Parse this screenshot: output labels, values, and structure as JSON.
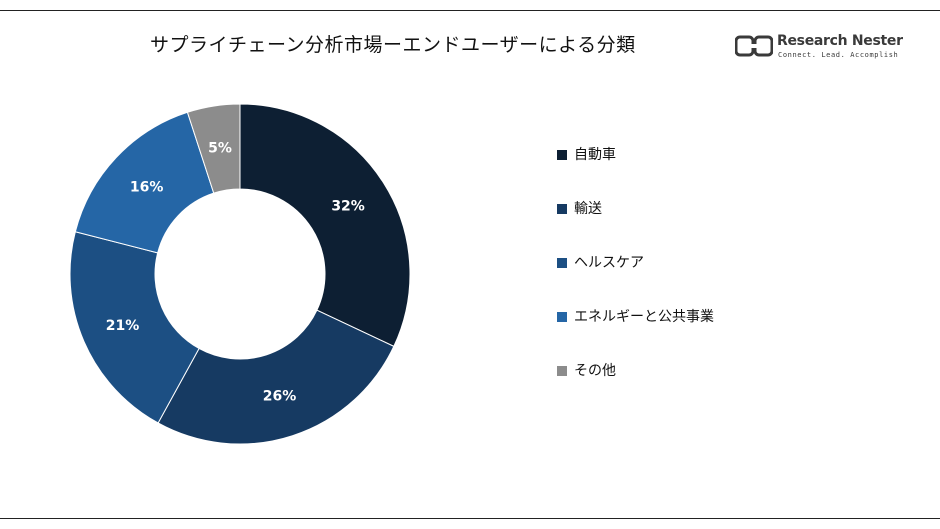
{
  "header": {
    "title": "サプライチェーン分析市場ーエンドユーザーによる分類"
  },
  "logo": {
    "name": "Research Nester",
    "tagline": "Connect. Lead. Accomplish"
  },
  "chart_data": {
    "type": "pie",
    "donut": true,
    "categories": [
      "自動車",
      "輸送",
      "ヘルスケア",
      "エネルギーと公共事業",
      "その他"
    ],
    "values": [
      32,
      26,
      21,
      16,
      5
    ],
    "value_labels": [
      "32%",
      "26%",
      "21%",
      "16%",
      "5%"
    ],
    "colors": [
      "#0d1f33",
      "#163a62",
      "#1c4f83",
      "#2566a6",
      "#8c8c8c"
    ],
    "legend_position": "right"
  }
}
